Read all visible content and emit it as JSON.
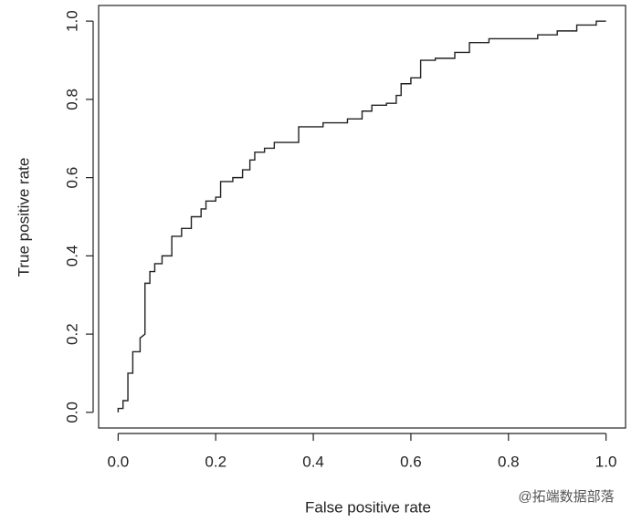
{
  "chart_data": {
    "type": "line",
    "xlabel": "False positive rate",
    "ylabel": "True positive rate",
    "watermark": "@拓端数据部落",
    "series": [
      {
        "color": "#222222",
        "x": [
          0,
          0,
          0.01,
          0.01,
          0.02,
          0.02,
          0.03,
          0.03,
          0.045,
          0.045,
          0.055,
          0.055,
          0.065,
          0.065,
          0.075,
          0.075,
          0.09,
          0.09,
          0.11,
          0.11,
          0.13,
          0.13,
          0.15,
          0.15,
          0.17,
          0.17,
          0.18,
          0.18,
          0.2,
          0.2,
          0.21,
          0.21,
          0.235,
          0.235,
          0.255,
          0.255,
          0.27,
          0.27,
          0.28,
          0.28,
          0.3,
          0.3,
          0.32,
          0.32,
          0.37,
          0.37,
          0.42,
          0.42,
          0.47,
          0.47,
          0.5,
          0.5,
          0.52,
          0.52,
          0.55,
          0.55,
          0.57,
          0.57,
          0.58,
          0.58,
          0.6,
          0.6,
          0.62,
          0.62,
          0.65,
          0.65,
          0.69,
          0.69,
          0.72,
          0.72,
          0.76,
          0.76,
          0.86,
          0.86,
          0.9,
          0.9,
          0.94,
          0.94,
          0.98,
          0.98,
          1
        ],
        "values": [
          0,
          0.01,
          0.01,
          0.03,
          0.03,
          0.1,
          0.1,
          0.155,
          0.155,
          0.19,
          0.2,
          0.33,
          0.33,
          0.36,
          0.36,
          0.38,
          0.38,
          0.4,
          0.4,
          0.45,
          0.45,
          0.47,
          0.47,
          0.5,
          0.5,
          0.52,
          0.52,
          0.54,
          0.54,
          0.55,
          0.55,
          0.59,
          0.59,
          0.6,
          0.6,
          0.62,
          0.62,
          0.645,
          0.645,
          0.665,
          0.665,
          0.675,
          0.675,
          0.69,
          0.69,
          0.73,
          0.73,
          0.74,
          0.74,
          0.75,
          0.75,
          0.77,
          0.77,
          0.785,
          0.785,
          0.79,
          0.79,
          0.81,
          0.81,
          0.84,
          0.84,
          0.855,
          0.855,
          0.9,
          0.9,
          0.905,
          0.905,
          0.92,
          0.92,
          0.945,
          0.945,
          0.955,
          0.955,
          0.965,
          0.965,
          0.975,
          0.975,
          0.99,
          0.99,
          1,
          1
        ]
      }
    ],
    "xlim": [
      -0.04,
      1.04
    ],
    "ylim": [
      -0.04,
      1.04
    ],
    "xticks": [
      {
        "value": 0,
        "label": "0.0"
      },
      0.2,
      0.4,
      0.6,
      0.8,
      {
        "value": 1,
        "label": "1.0"
      }
    ],
    "yticks": [
      {
        "value": 0,
        "label": "0.0"
      },
      0.2,
      0.4,
      0.6,
      0.8,
      {
        "value": 1,
        "label": "1.0"
      }
    ]
  }
}
